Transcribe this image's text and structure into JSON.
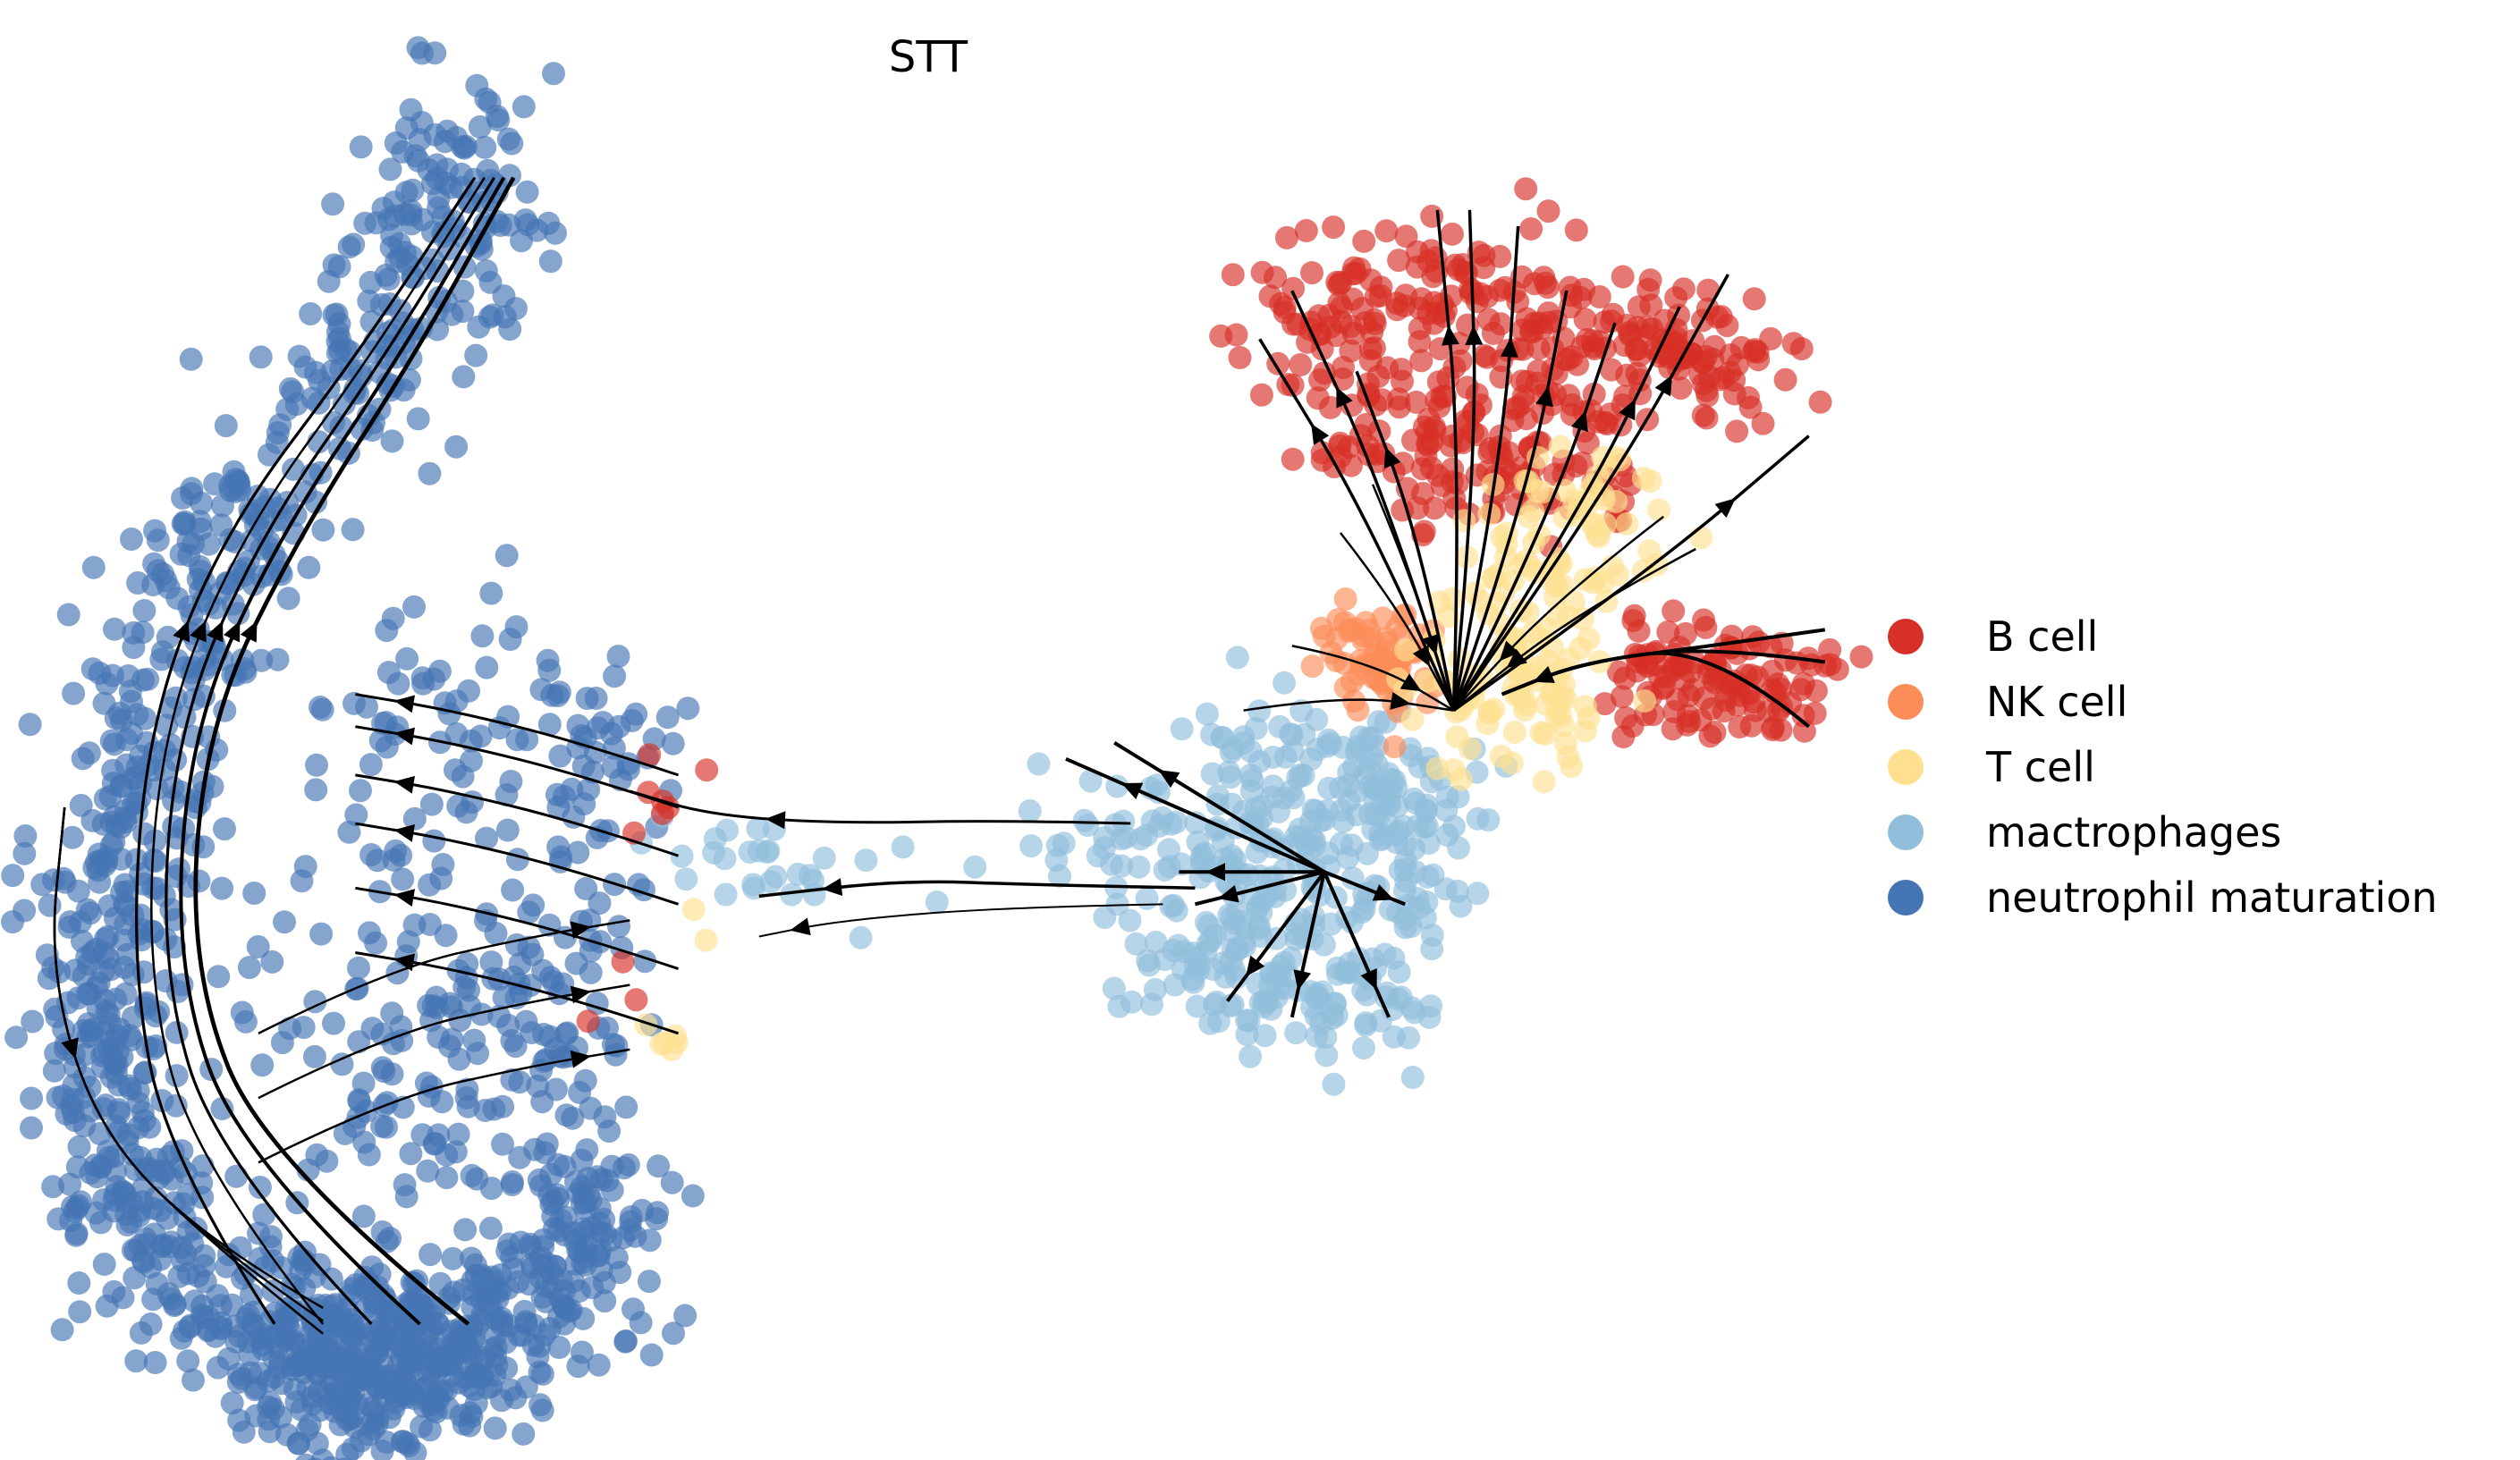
{
  "chart_data": {
    "type": "scatter",
    "title": "STT",
    "xlabel": "",
    "ylabel": "",
    "grid": false,
    "axes_visible": false,
    "legend_placement": "right",
    "overlay": "velocity streamlines with arrows",
    "categories": [
      "B cell",
      "NK cell",
      "T cell",
      "mactrophages",
      "neutrophil maturation"
    ],
    "colors": [
      "#d73027",
      "#fc8d59",
      "#fee090",
      "#91bfdb",
      "#4575b4"
    ]
  }
}
